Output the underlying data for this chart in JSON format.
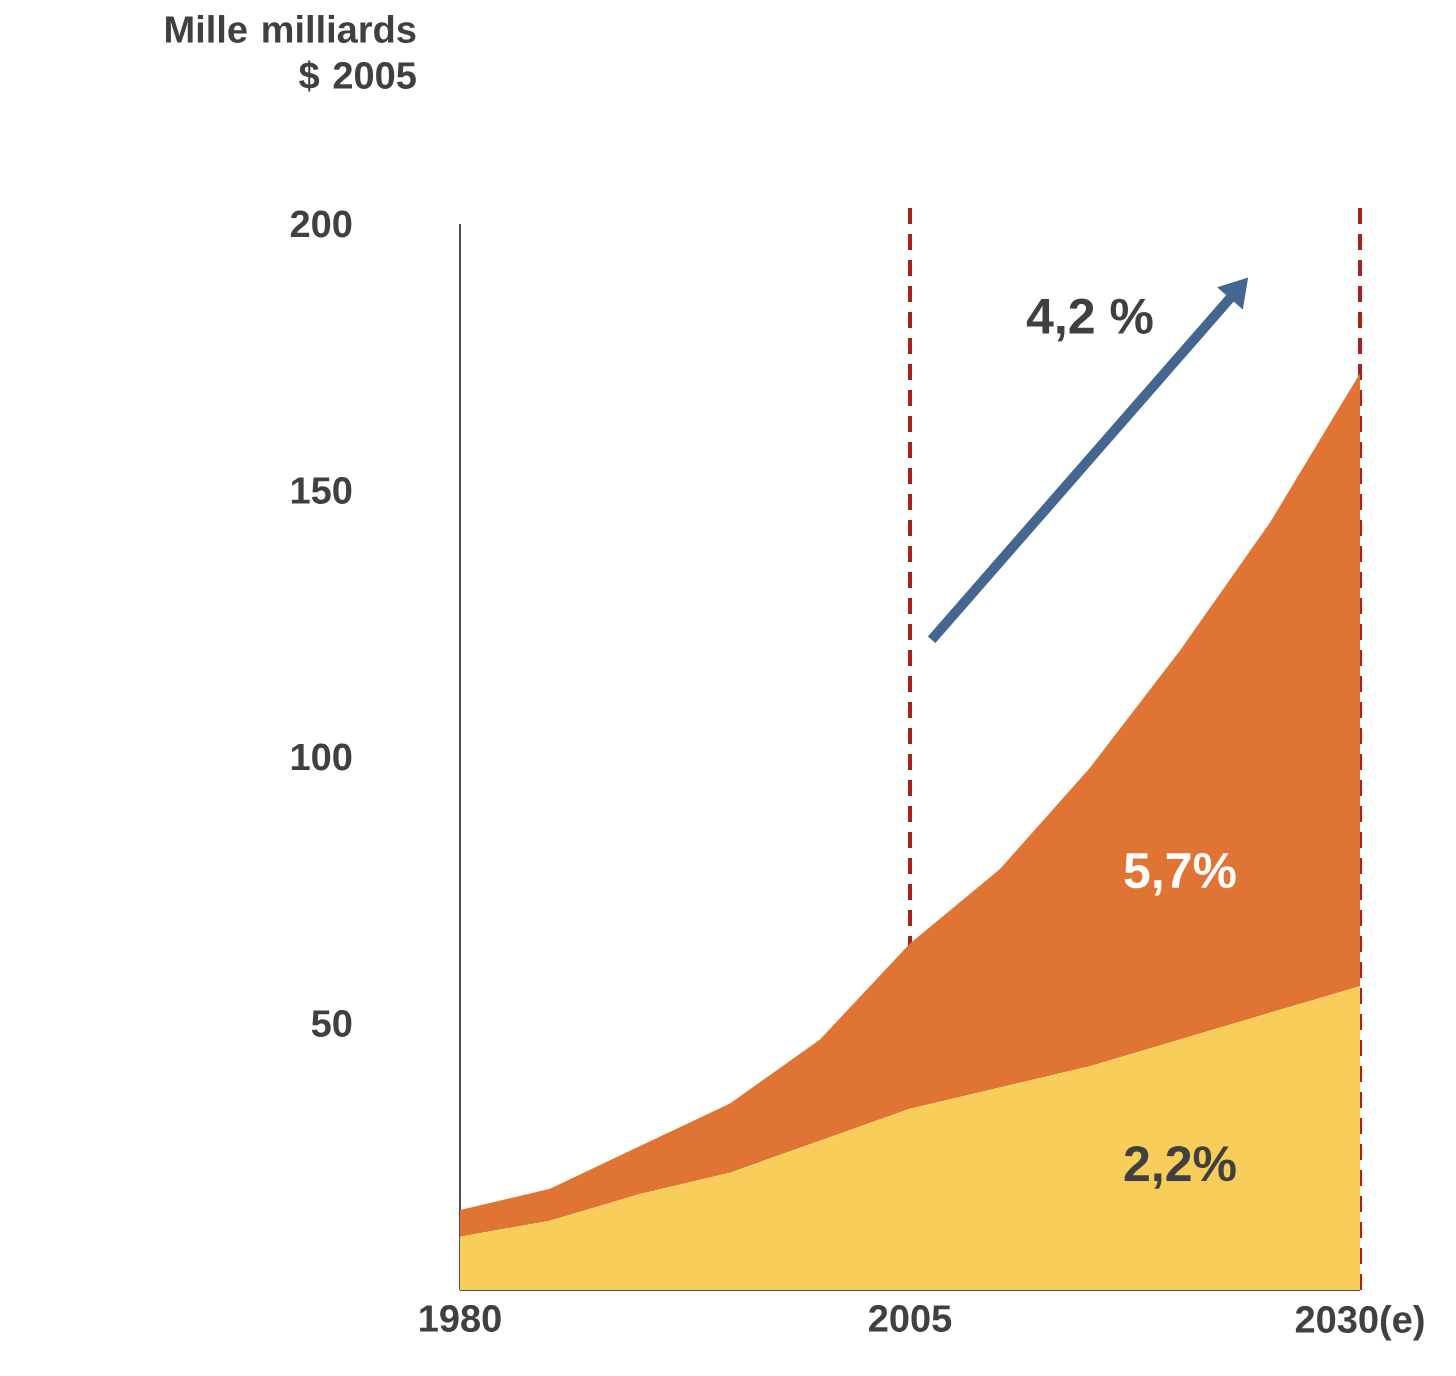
{
  "chart_data": {
    "type": "area",
    "ylabel": "Mille milliards $ 2005",
    "stacked": true,
    "x": [
      1980,
      1985,
      1990,
      1995,
      2000,
      2005,
      2010,
      2015,
      2020,
      2025,
      2030
    ],
    "series": [
      {
        "color": "#f9cd5a",
        "values": [
          10,
          13,
          18,
          22,
          28,
          34,
          38,
          42,
          47,
          52,
          57
        ]
      },
      {
        "color": "#e07434",
        "values": [
          5,
          6,
          9,
          13,
          19,
          31,
          41,
          56,
          73,
          92,
          115
        ]
      }
    ],
    "xlim": [
      1980,
      2030
    ],
    "xticks": [
      1980,
      2005,
      {
        "value": 2030,
        "label": "2030(e)"
      }
    ],
    "ylim": [
      0,
      200
    ],
    "yticks": [
      50,
      100,
      150,
      200
    ],
    "ref_lines": [
      {
        "axis": "x",
        "value": 2005,
        "color": "#a8221a",
        "line_style": "dashed"
      },
      {
        "axis": "x",
        "value": 2030,
        "color": "#a8221a",
        "line_style": "dashed"
      }
    ],
    "annotations": [
      "4,2 %",
      "5,7%",
      "2,2%"
    ],
    "grid": false
  }
}
